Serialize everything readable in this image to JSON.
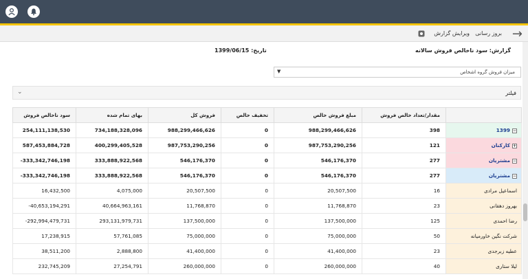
{
  "header": {
    "icons": [
      "user-icon",
      "bell-icon"
    ]
  },
  "toolbar": {
    "refresh_label": "بروز رسانی",
    "edit_label": "ویرایش گزارش"
  },
  "report": {
    "title": "گزارش: سود ناخالص فروش سالانه",
    "date": "تاریخ: 1399/06/15"
  },
  "dropdown": {
    "value": "میزان فروش گروه اشخاص"
  },
  "filter": {
    "label": "فیلتر"
  },
  "table": {
    "headers": [
      "سود ناخالص فروش",
      "بهای تمام شده",
      "فروش کل",
      "تخفیف خالص",
      "مبلغ فروش خالص",
      "مقدار/تعداد خالص فروش",
      ""
    ],
    "rows": [
      {
        "label": "1399",
        "toggle": "−",
        "cells": [
          "254,111,138,530",
          "734,188,328,096",
          "988,299,466,626",
          "0",
          "988,299,466,626",
          "398"
        ]
      },
      {
        "label": "کارکنان",
        "toggle": "+",
        "cells": [
          "587,453,884,728",
          "400,299,405,528",
          "987,753,290,256",
          "0",
          "987,753,290,256",
          "121"
        ]
      },
      {
        "label": "مشتریان",
        "toggle": "−",
        "cells": [
          "-333,342,746,198",
          "333,888,922,568",
          "546,176,370",
          "0",
          "546,176,370",
          "277"
        ]
      },
      {
        "label": "مشتریان",
        "toggle": "−",
        "cells": [
          "-333,342,746,198",
          "333,888,922,568",
          "546,176,370",
          "0",
          "546,176,370",
          "277"
        ]
      },
      {
        "label": "اسماعیل مرادی",
        "cells": [
          "16,432,500",
          "4,075,000",
          "20,507,500",
          "0",
          "20,507,500",
          "16"
        ]
      },
      {
        "label": "بهروز دهقانی",
        "cells": [
          "-40,653,194,291",
          "40,664,963,161",
          "11,768,870",
          "0",
          "11,768,870",
          "23"
        ]
      },
      {
        "label": "رضا احمدی",
        "cells": [
          "-292,994,479,731",
          "293,131,979,731",
          "137,500,000",
          "0",
          "137,500,000",
          "125"
        ]
      },
      {
        "label": "شرکت نگین خاورمیانه",
        "cells": [
          "17,238,915",
          "57,761,085",
          "75,000,000",
          "0",
          "75,000,000",
          "50"
        ]
      },
      {
        "label": "عطیه زبرجدی",
        "cells": [
          "38,511,200",
          "2,888,800",
          "41,400,000",
          "0",
          "41,400,000",
          "23"
        ]
      },
      {
        "label": "لیلا ستاری",
        "cells": [
          "232,745,209",
          "27,254,791",
          "260,000,000",
          "0",
          "260,000,000",
          "40"
        ]
      }
    ]
  }
}
